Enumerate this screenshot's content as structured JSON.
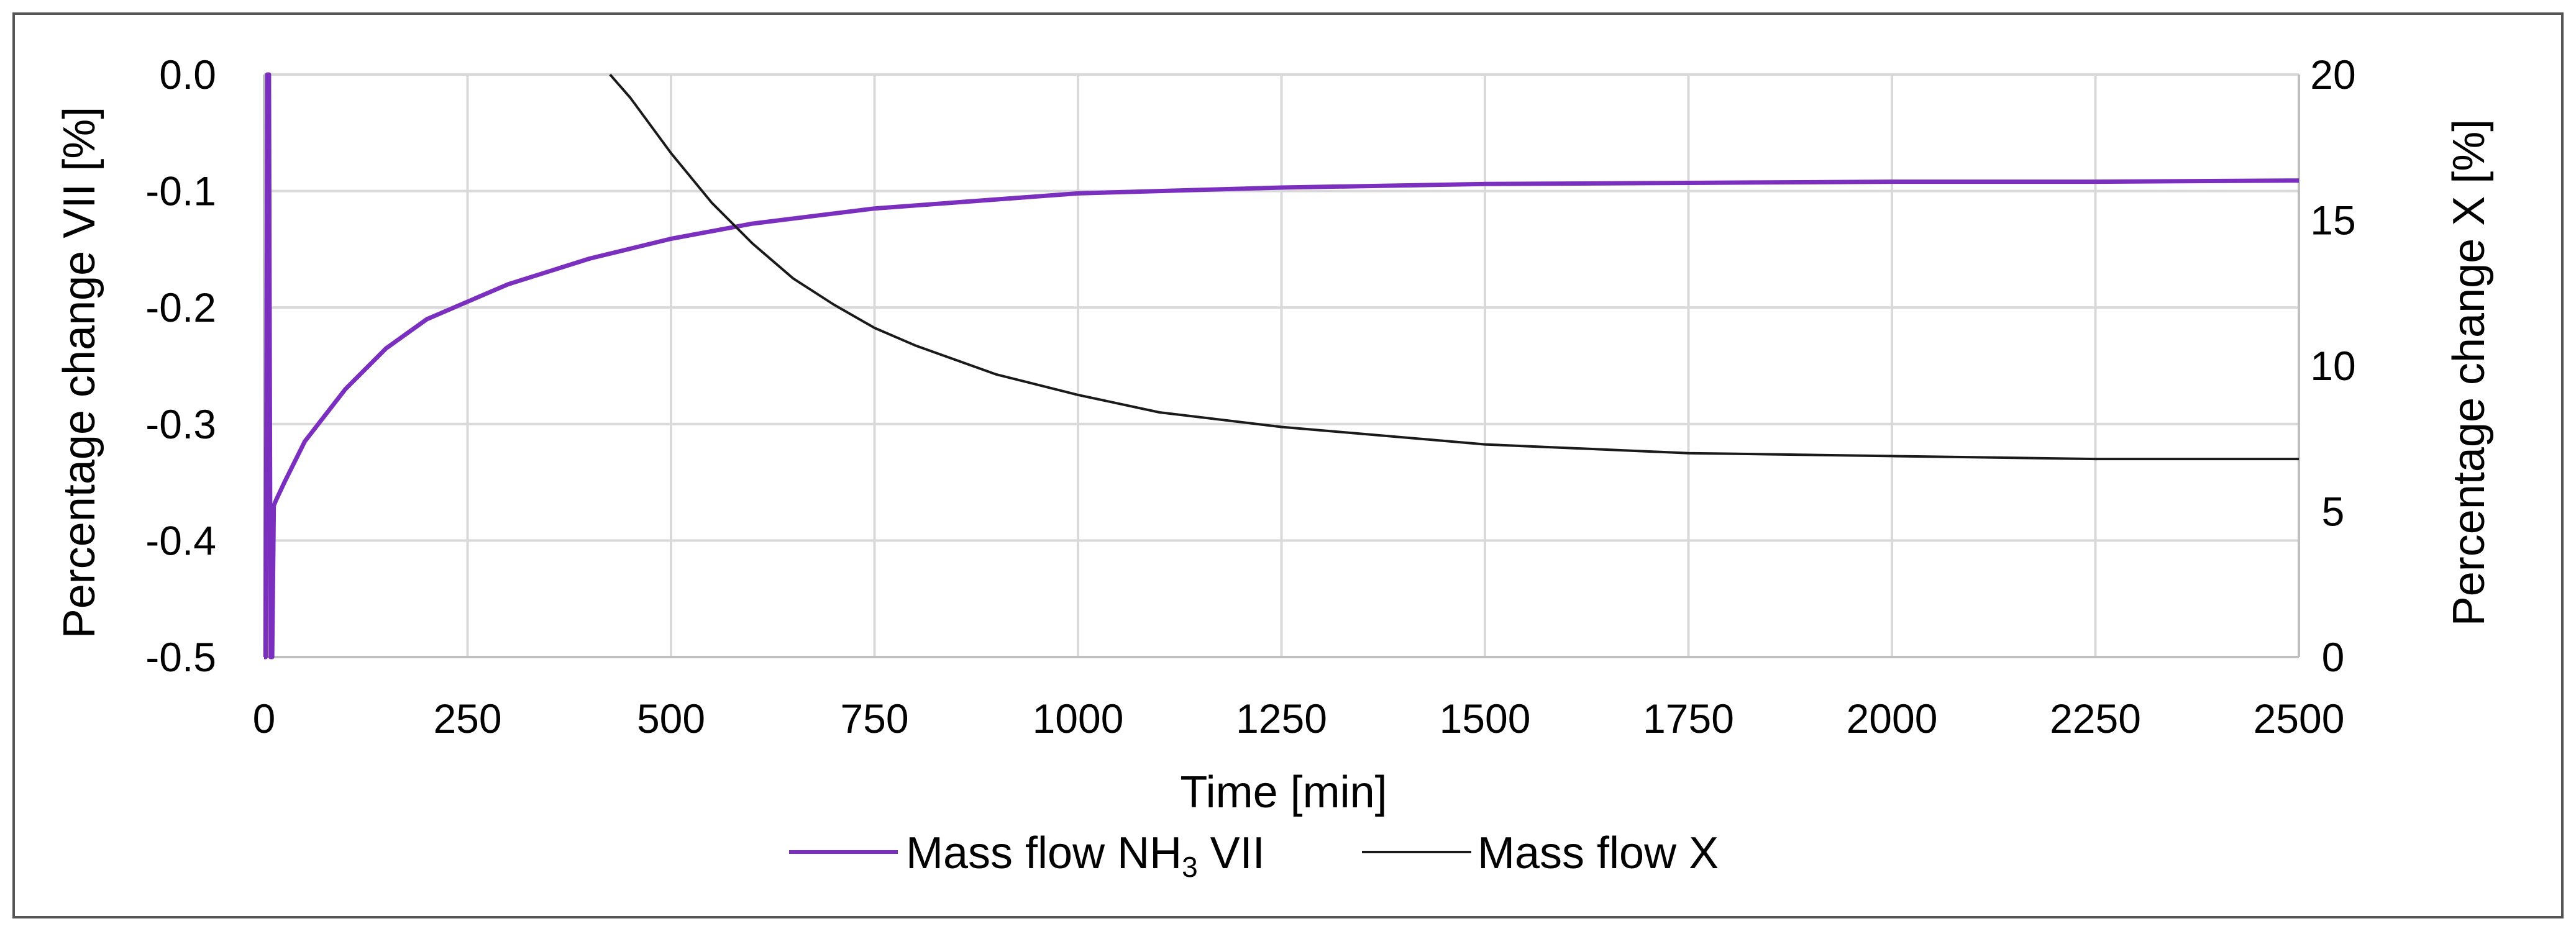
{
  "chart_data": {
    "type": "line",
    "title": "",
    "xlabel": "Time [min]",
    "ylabel_left": "Percentage change VII [%]",
    "ylabel_right": "Percentage change X [%]",
    "xlim": [
      0,
      2500
    ],
    "ylim_left": [
      -0.5,
      0.0
    ],
    "ylim_right": [
      0,
      20
    ],
    "x_ticks": [
      {
        "value": 0,
        "label": "0"
      },
      {
        "value": 250,
        "label": "250"
      },
      {
        "value": 500,
        "label": "500"
      },
      {
        "value": 750,
        "label": "750"
      },
      {
        "value": 1000,
        "label": "1000"
      },
      {
        "value": 1250,
        "label": "1250"
      },
      {
        "value": 1500,
        "label": "1500"
      },
      {
        "value": 1750,
        "label": "1750"
      },
      {
        "value": 2000,
        "label": "2000"
      },
      {
        "value": 2250,
        "label": "2250"
      },
      {
        "value": 2500,
        "label": "2500"
      }
    ],
    "y_left_ticks": [
      {
        "value": 0.0,
        "label": "0.0"
      },
      {
        "value": -0.1,
        "label": "-0.1"
      },
      {
        "value": -0.2,
        "label": "-0.2"
      },
      {
        "value": -0.3,
        "label": "-0.3"
      },
      {
        "value": -0.4,
        "label": "-0.4"
      },
      {
        "value": -0.5,
        "label": "-0.5"
      }
    ],
    "y_right_ticks": [
      {
        "value": 0,
        "label": "0"
      },
      {
        "value": 5,
        "label": "5"
      },
      {
        "value": 10,
        "label": "10"
      },
      {
        "value": 15,
        "label": "15"
      },
      {
        "value": 20,
        "label": "20"
      }
    ],
    "grid": true,
    "legend_position": "bottom",
    "series": [
      {
        "name": "Mass flow NH3 VII",
        "legend_main": "Mass flow NH",
        "legend_sub": "3",
        "legend_tail": " VII",
        "color": "#7B2FBE",
        "axis": "left",
        "x": [
          0,
          2,
          4,
          6,
          8,
          10,
          12,
          15,
          25,
          50,
          100,
          150,
          200,
          250,
          300,
          400,
          500,
          600,
          750,
          1000,
          1250,
          1500,
          1750,
          2000,
          2250,
          2500
        ],
        "y": [
          -0.5,
          -0.5,
          0.0,
          0.0,
          -0.5,
          -0.5,
          -0.37,
          -0.365,
          -0.35,
          -0.315,
          -0.27,
          -0.235,
          -0.21,
          -0.195,
          -0.18,
          -0.158,
          -0.141,
          -0.128,
          -0.115,
          -0.102,
          -0.097,
          -0.094,
          -0.093,
          -0.092,
          -0.092,
          -0.091
        ]
      },
      {
        "name": "Mass flow X",
        "legend_main": "Mass flow X",
        "legend_sub": "",
        "legend_tail": "",
        "color": "#1a1a1a",
        "axis": "right",
        "x": [
          425,
          450,
          500,
          550,
          600,
          650,
          700,
          750,
          800,
          900,
          1000,
          1100,
          1250,
          1500,
          1750,
          2000,
          2250,
          2500
        ],
        "y": [
          20.0,
          19.2,
          17.3,
          15.6,
          14.2,
          13.0,
          12.1,
          11.3,
          10.7,
          9.7,
          9.0,
          8.4,
          7.9,
          7.3,
          7.0,
          6.9,
          6.8,
          6.8
        ]
      }
    ]
  }
}
